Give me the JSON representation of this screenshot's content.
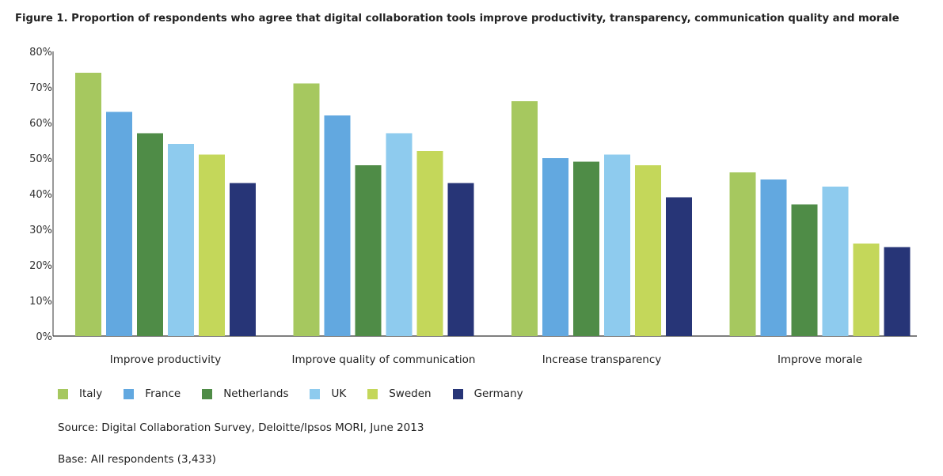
{
  "chart_data": {
    "type": "bar",
    "title": "Figure 1. Proportion of respondents who agree that digital collaboration tools improve productivity, transparency, communication quality and morale",
    "categories": [
      "Improve productivity",
      "Improve quality of communication",
      "Increase transparency",
      "Improve morale"
    ],
    "series": [
      {
        "name": "Italy",
        "color": "#a6c85f",
        "values": [
          74,
          71,
          66,
          46
        ]
      },
      {
        "name": "France",
        "color": "#62a8e0",
        "values": [
          63,
          62,
          50,
          44
        ]
      },
      {
        "name": "Netherlands",
        "color": "#4f8c47",
        "values": [
          57,
          48,
          49,
          37
        ]
      },
      {
        "name": "UK",
        "color": "#8ecbee",
        "values": [
          54,
          57,
          51,
          42
        ]
      },
      {
        "name": "Sweden",
        "color": "#c4d75a",
        "values": [
          51,
          52,
          48,
          26
        ]
      },
      {
        "name": "Germany",
        "color": "#273577",
        "values": [
          43,
          43,
          39,
          25
        ]
      }
    ],
    "yticks": [
      "0%",
      "10%",
      "20%",
      "30%",
      "40%",
      "50%",
      "60%",
      "70%",
      "80%"
    ],
    "ylim": [
      0,
      80
    ],
    "grid": false,
    "legend": "bottom-left",
    "source": "Source: Digital Collaboration Survey, Deloitte/Ipsos MORI, June 2013",
    "base": "Base: All respondents (3,433)"
  }
}
